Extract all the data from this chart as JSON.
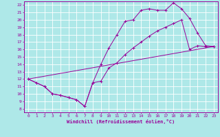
{
  "background_color": "#aee8e8",
  "grid_color": "#ffffff",
  "line_color": "#990099",
  "xlabel": "Windchill (Refroidissement éolien,°C)",
  "xlim": [
    -0.5,
    23.5
  ],
  "ylim": [
    7.5,
    22.5
  ],
  "xticks": [
    0,
    1,
    2,
    3,
    4,
    5,
    6,
    7,
    8,
    9,
    10,
    11,
    12,
    13,
    14,
    15,
    16,
    17,
    18,
    19,
    20,
    21,
    22,
    23
  ],
  "yticks": [
    8,
    9,
    10,
    11,
    12,
    13,
    14,
    15,
    16,
    17,
    18,
    19,
    20,
    21,
    22
  ],
  "line1_x": [
    0,
    1,
    2,
    3,
    4,
    5,
    6,
    7,
    8,
    9,
    10,
    11,
    12,
    13,
    14,
    15,
    16,
    17,
    18,
    19,
    20,
    21,
    22,
    23
  ],
  "line1_y": [
    12,
    11.5,
    11,
    10,
    9.8,
    9.5,
    9.2,
    8.3,
    11.5,
    14,
    16.2,
    18,
    19.8,
    20.0,
    21.3,
    21.5,
    21.3,
    21.3,
    22.3,
    21.5,
    20.2,
    18.2,
    16.5,
    16.4
  ],
  "line2_x": [
    0,
    1,
    2,
    3,
    4,
    5,
    6,
    7,
    8,
    9,
    10,
    11,
    12,
    13,
    14,
    15,
    16,
    17,
    18,
    19,
    20,
    21,
    22,
    23
  ],
  "line2_y": [
    12,
    11.5,
    11,
    10,
    9.8,
    9.5,
    9.2,
    8.3,
    11.5,
    11.7,
    13.5,
    14.2,
    15.3,
    16.2,
    17.0,
    17.8,
    18.5,
    19.0,
    19.5,
    20.0,
    16.0,
    16.5,
    16.4,
    16.4
  ],
  "line3_x": [
    0,
    23
  ],
  "line3_y": [
    12,
    16.4
  ]
}
